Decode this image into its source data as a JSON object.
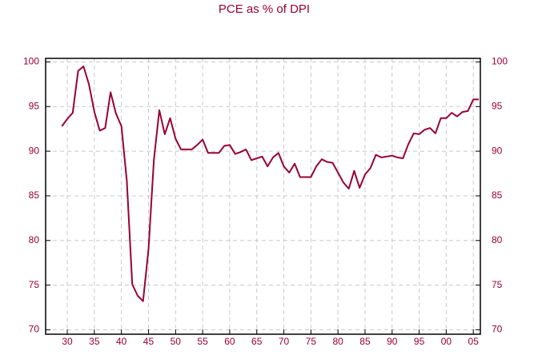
{
  "chart_data": {
    "type": "line",
    "title": "PCE as % of DPI",
    "x": [
      1929,
      1930,
      1931,
      1932,
      1933,
      1934,
      1935,
      1936,
      1937,
      1938,
      1939,
      1940,
      1941,
      1942,
      1943,
      1944,
      1945,
      1946,
      1947,
      1948,
      1949,
      1950,
      1951,
      1952,
      1953,
      1954,
      1955,
      1956,
      1957,
      1958,
      1959,
      1960,
      1961,
      1962,
      1963,
      1964,
      1965,
      1966,
      1967,
      1968,
      1969,
      1970,
      1971,
      1972,
      1973,
      1974,
      1975,
      1976,
      1977,
      1978,
      1979,
      1980,
      1981,
      1982,
      1983,
      1984,
      1985,
      1986,
      1987,
      1988,
      1989,
      1990,
      1991,
      1992,
      1993,
      1994,
      1995,
      1996,
      1997,
      1998,
      1999,
      2000,
      2001,
      2002,
      2003,
      2004,
      2005,
      2006
    ],
    "series": [
      {
        "color": "#990033",
        "values": [
          92.8,
          93.6,
          94.3,
          99.0,
          99.5,
          97.5,
          94.4,
          92.3,
          92.6,
          96.6,
          94.2,
          92.8,
          86.7,
          75.1,
          73.8,
          73.2,
          79.0,
          89.0,
          94.6,
          91.9,
          93.7,
          91.4,
          90.2,
          90.2,
          90.2,
          90.7,
          91.3,
          89.8,
          89.8,
          89.8,
          90.6,
          90.7,
          89.7,
          89.9,
          90.2,
          89.0,
          89.2,
          89.4,
          88.3,
          89.3,
          89.8,
          88.3,
          87.6,
          88.6,
          87.1,
          87.1,
          87.1,
          88.3,
          89.1,
          88.8,
          88.7,
          87.6,
          86.5,
          85.8,
          87.8,
          85.9,
          87.4,
          88.1,
          89.6,
          89.3,
          89.4,
          89.5,
          89.3,
          89.2,
          90.8,
          92.0,
          91.9,
          92.4,
          92.6,
          92.0,
          93.7,
          93.7,
          94.3,
          93.9,
          94.4,
          94.5,
          95.8,
          95.8
        ]
      }
    ],
    "xlim": [
      1926,
      2006.3
    ],
    "xticks": [
      {
        "value": 1930,
        "label": "30"
      },
      {
        "value": 1935,
        "label": "35"
      },
      {
        "value": 1940,
        "label": "40"
      },
      {
        "value": 1945,
        "label": "45"
      },
      {
        "value": 1950,
        "label": "50"
      },
      {
        "value": 1955,
        "label": "55"
      },
      {
        "value": 1960,
        "label": "60"
      },
      {
        "value": 1965,
        "label": "65"
      },
      {
        "value": 1970,
        "label": "70"
      },
      {
        "value": 1975,
        "label": "75"
      },
      {
        "value": 1980,
        "label": "80"
      },
      {
        "value": 1985,
        "label": "85"
      },
      {
        "value": 1990,
        "label": "90"
      },
      {
        "value": 1995,
        "label": "95"
      },
      {
        "value": 2000,
        "label": "00"
      },
      {
        "value": 2005,
        "label": "05"
      }
    ],
    "ylim": [
      69.5,
      100.4
    ],
    "yticks": [
      70,
      75,
      80,
      85,
      90,
      95,
      100
    ],
    "grid": true
  }
}
